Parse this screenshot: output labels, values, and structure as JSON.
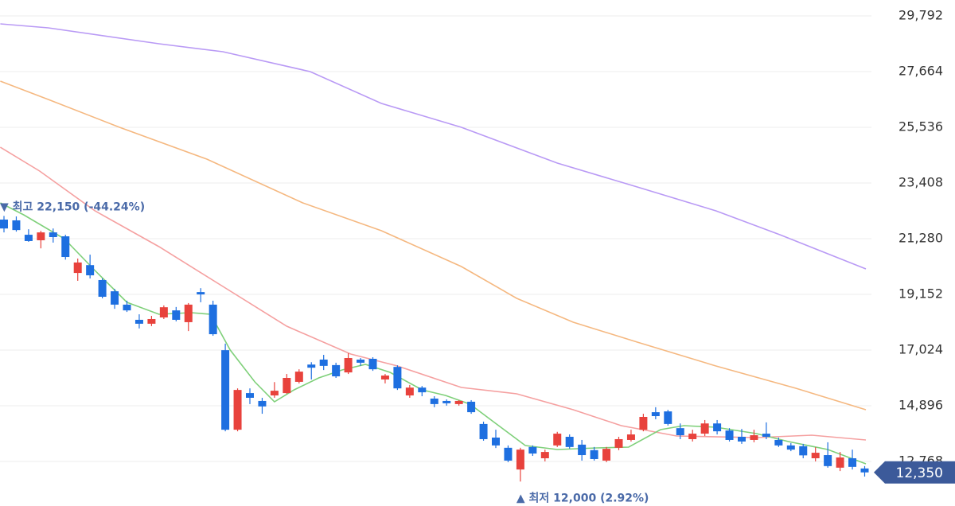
{
  "chart_data": {
    "type": "candlestick",
    "ylim": [
      12000,
      30100
    ],
    "yticks": [
      {
        "value": 29792,
        "label": "29,792"
      },
      {
        "value": 27664,
        "label": "27,664"
      },
      {
        "value": 25536,
        "label": "25,536"
      },
      {
        "value": 23408,
        "label": "23,408"
      },
      {
        "value": 21280,
        "label": "21,280"
      },
      {
        "value": 19152,
        "label": "19,152"
      },
      {
        "value": 17024,
        "label": "17,024"
      },
      {
        "value": 14896,
        "label": "14,896"
      },
      {
        "value": 12768,
        "label": "12,768"
      }
    ],
    "grid": true,
    "up_color": "#e8423c",
    "down_color": "#1e6fe0",
    "candles": [
      [
        22010,
        22150,
        21520,
        21670
      ],
      [
        21980,
        22130,
        21550,
        21610
      ],
      [
        21430,
        21640,
        21160,
        21190
      ],
      [
        21220,
        21580,
        20910,
        21520
      ],
      [
        21520,
        21670,
        21130,
        21340
      ],
      [
        21370,
        21430,
        20480,
        20580
      ],
      [
        19970,
        20520,
        19670,
        20370
      ],
      [
        20270,
        20670,
        19760,
        19880
      ],
      [
        19700,
        19760,
        19000,
        19060
      ],
      [
        19270,
        19360,
        18600,
        18760
      ],
      [
        18760,
        18910,
        18480,
        18540
      ],
      [
        18180,
        18390,
        17850,
        18030
      ],
      [
        18030,
        18330,
        17940,
        18210
      ],
      [
        18270,
        18730,
        18210,
        18660
      ],
      [
        18540,
        18670,
        18120,
        18180
      ],
      [
        18090,
        18820,
        17750,
        18760
      ],
      [
        19240,
        19390,
        18850,
        19150
      ],
      [
        18760,
        18910,
        17570,
        17630
      ],
      [
        17020,
        17270,
        13920,
        13980
      ],
      [
        13980,
        15560,
        13920,
        15500
      ],
      [
        15380,
        15560,
        14960,
        15200
      ],
      [
        15080,
        15200,
        14590,
        14870
      ],
      [
        15290,
        15800,
        15200,
        15470
      ],
      [
        15380,
        16110,
        15350,
        15960
      ],
      [
        15810,
        16290,
        15750,
        16200
      ],
      [
        16470,
        16560,
        15900,
        16350
      ],
      [
        16660,
        16840,
        16260,
        16420
      ],
      [
        16450,
        16540,
        15960,
        16020
      ],
      [
        16170,
        16900,
        16110,
        16720
      ],
      [
        16660,
        16720,
        16420,
        16540
      ],
      [
        16690,
        16750,
        16230,
        16290
      ],
      [
        15900,
        16110,
        15750,
        16050
      ],
      [
        16380,
        16440,
        15500,
        15560
      ],
      [
        15290,
        15690,
        15200,
        15590
      ],
      [
        15590,
        15650,
        15260,
        15410
      ],
      [
        15170,
        15260,
        14840,
        14960
      ],
      [
        15080,
        15140,
        14900,
        14990
      ],
      [
        14960,
        15110,
        14900,
        15080
      ],
      [
        15050,
        15110,
        14590,
        14650
      ],
      [
        14200,
        14290,
        13560,
        13620
      ],
      [
        13680,
        13980,
        13280,
        13380
      ],
      [
        13290,
        13380,
        12740,
        12800
      ],
      [
        12460,
        13290,
        12000,
        13220
      ],
      [
        13320,
        13380,
        12980,
        13070
      ],
      [
        12890,
        13220,
        12770,
        13130
      ],
      [
        13380,
        13900,
        13320,
        13830
      ],
      [
        13710,
        13800,
        13260,
        13320
      ],
      [
        13410,
        13590,
        12800,
        13010
      ],
      [
        13200,
        13320,
        12800,
        12860
      ],
      [
        12800,
        13320,
        12740,
        13250
      ],
      [
        13290,
        13710,
        13200,
        13620
      ],
      [
        13590,
        13980,
        13530,
        13800
      ],
      [
        13980,
        14590,
        13920,
        14470
      ],
      [
        14650,
        14840,
        14380,
        14500
      ],
      [
        14680,
        14740,
        14140,
        14200
      ],
      [
        14040,
        14220,
        13620,
        13770
      ],
      [
        13620,
        13980,
        13530,
        13830
      ],
      [
        13830,
        14350,
        13740,
        14220
      ],
      [
        14220,
        14350,
        13800,
        13920
      ],
      [
        13950,
        14040,
        13530,
        13590
      ],
      [
        13710,
        14010,
        13440,
        13530
      ],
      [
        13590,
        13980,
        13500,
        13770
      ],
      [
        13830,
        14260,
        13620,
        13710
      ],
      [
        13590,
        13680,
        13320,
        13380
      ],
      [
        13380,
        13470,
        13160,
        13220
      ],
      [
        13350,
        13440,
        12890,
        13000
      ],
      [
        12890,
        13310,
        12770,
        13100
      ],
      [
        13010,
        13500,
        12530,
        12590
      ],
      [
        12530,
        13130,
        12400,
        12920
      ],
      [
        12890,
        13220,
        12460,
        12560
      ],
      [
        12500,
        12590,
        12190,
        12350
      ]
    ],
    "series": [
      {
        "color": "#b99af5",
        "x": [
          -0.3,
          3.6,
          12.6,
          17.8,
          24.9,
          30.7,
          37.2,
          45,
          51.5,
          57.9,
          63.1,
          70.1
        ],
        "values": [
          29488,
          29336,
          28728,
          28424,
          27664,
          26448,
          25536,
          24168,
          23256,
          22344,
          21432,
          20125
        ]
      },
      {
        "color": "#f5b880",
        "x": [
          -0.3,
          3.6,
          9.4,
          16.5,
          24.3,
          30.7,
          37.2,
          41.7,
          46.3,
          51.5,
          57.9,
          64.4,
          70.1
        ],
        "values": [
          27299,
          26600,
          25536,
          24320,
          22648,
          21584,
          20216,
          19000,
          18088,
          17328,
          16416,
          15565,
          14744
        ]
      },
      {
        "color": "#f5a0a0",
        "x": [
          -0.3,
          2.9,
          7.4,
          12.6,
          17.8,
          23,
          28.2,
          32,
          37.2,
          41.7,
          46.3,
          50.2,
          54.7,
          61.2,
          65.7,
          70.1
        ],
        "values": [
          24776,
          23864,
          22344,
          20976,
          19456,
          17936,
          16872,
          16416,
          15595,
          15352,
          14744,
          14136,
          13741,
          13680,
          13771,
          13589
        ]
      },
      {
        "color": "#7fd07a",
        "x": [
          -0.3,
          1.6,
          4.9,
          7.4,
          10,
          12.6,
          15.2,
          16.8,
          18.4,
          20.4,
          22,
          23.6,
          25.6,
          27.5,
          29.4,
          31.4,
          34,
          35.9,
          37.9,
          39.8,
          42.4,
          45,
          48.2,
          50.8,
          53.4,
          55.3,
          57.9,
          61.2,
          63.8,
          67,
          70.1
        ],
        "values": [
          22648,
          22192,
          21280,
          20064,
          18848,
          18392,
          18453,
          18392,
          17024,
          15808,
          15048,
          15504,
          15960,
          16264,
          16477,
          16173,
          15504,
          15291,
          14957,
          14288,
          13376,
          13224,
          13285,
          13315,
          13984,
          14136,
          14075,
          13832,
          13528,
          13224,
          12677
        ]
      }
    ],
    "annotations": [
      {
        "index": 0,
        "value": 22150,
        "text": "▼ 최고 22,150 (-44.24%)"
      },
      {
        "index": 42,
        "value": 12000,
        "text": "▲ 최저 12,000 (2.92%)"
      }
    ],
    "last_price": {
      "value": 12350,
      "label": "12,350",
      "color": "#3c5a9a"
    }
  }
}
